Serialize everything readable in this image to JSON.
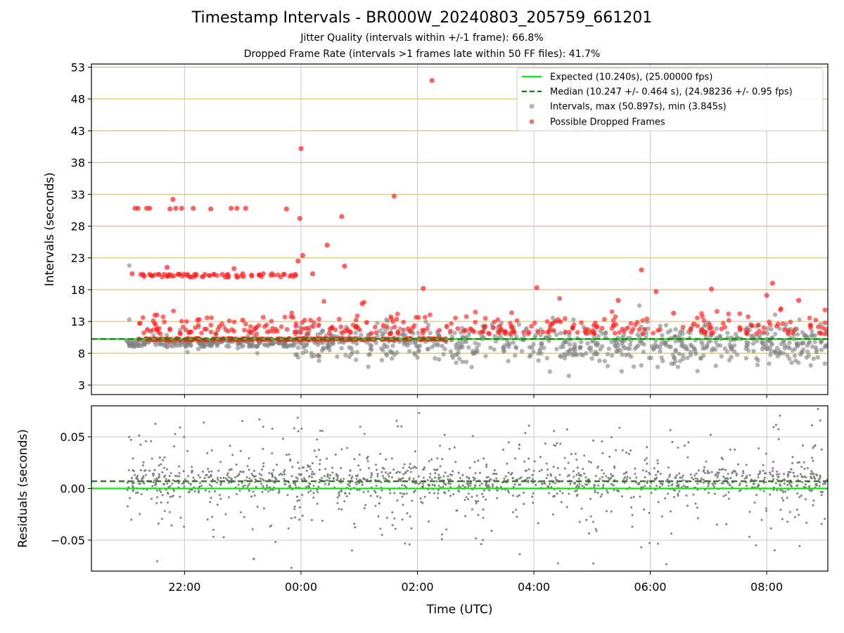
{
  "header": {
    "title": "Timestamp Intervals - BR000W_20240803_205759_661201",
    "subtitle1": "Jitter Quality (intervals within +/-1 frame): 66.8%",
    "subtitle2": "Dropped Frame Rate (intervals >1 frames late within 50 FF files): 41.7%"
  },
  "colors": {
    "expected": "#00ee00",
    "median": "#1a7a1a",
    "intervals": "#808080",
    "dropped": "#ff1f1f",
    "hgrid": "#d4c080",
    "vgrid": "#c8c8c8"
  },
  "chart_data": [
    {
      "type": "scatter",
      "title": "Timestamp Intervals - BR000W_20240803_205759_661201",
      "xlabel": "",
      "ylabel": "Intervals (seconds)",
      "x_ticks": [
        "22:00",
        "00:00",
        "02:00",
        "04:00",
        "06:00",
        "08:00"
      ],
      "x_tick_hours": [
        22,
        24,
        26,
        28,
        30,
        32
      ],
      "xlim_hours": [
        20.4,
        33.05
      ],
      "ylim": [
        1.5,
        53.5
      ],
      "y_ticks": [
        3,
        8,
        13,
        18,
        23,
        28,
        33,
        38,
        43,
        48,
        53
      ],
      "grid": true,
      "legend": {
        "placement": "top-right",
        "entries": [
          "Expected (10.240s), (25.00000 fps)",
          "Median (10.247 +/- 0.464 s), (24.98236 +/- 0.95 fps)",
          "Intervals, max (50.897s), min (3.845s)",
          "Possible Dropped Frames"
        ]
      },
      "expected_interval": 10.24,
      "median_interval": 10.247,
      "series": [
        {
          "name": "Possible Dropped Frames",
          "description_points": [
            [
              21.1,
              20.5
            ],
            [
              21.15,
              30.8
            ],
            [
              21.2,
              30.8
            ],
            [
              21.35,
              30.8
            ],
            [
              21.4,
              30.8
            ],
            [
              21.25,
              20.4
            ],
            [
              21.4,
              20.4
            ],
            [
              21.55,
              20.4
            ],
            [
              21.65,
              20.4
            ],
            [
              21.7,
              21.5
            ],
            [
              21.75,
              30.7
            ],
            [
              21.85,
              30.8
            ],
            [
              21.95,
              30.8
            ],
            [
              21.8,
              32.2
            ],
            [
              21.9,
              20.4
            ],
            [
              22.05,
              20.4
            ],
            [
              22.15,
              30.8
            ],
            [
              22.2,
              20.4
            ],
            [
              22.35,
              20.4
            ],
            [
              22.45,
              30.7
            ],
            [
              22.5,
              20.4
            ],
            [
              22.65,
              20.4
            ],
            [
              22.8,
              30.8
            ],
            [
              22.9,
              30.8
            ],
            [
              23.05,
              30.8
            ],
            [
              22.7,
              20.0
            ],
            [
              22.85,
              21.3
            ],
            [
              23.0,
              20.5
            ],
            [
              23.15,
              20.3
            ],
            [
              23.35,
              20.5
            ],
            [
              23.5,
              20.5
            ],
            [
              23.7,
              20.4
            ],
            [
              23.75,
              30.7
            ],
            [
              23.9,
              20.4
            ],
            [
              23.95,
              22.5
            ],
            [
              23.98,
              29.2
            ],
            [
              24.0,
              40.2
            ],
            [
              24.03,
              23.4
            ],
            [
              24.2,
              20.5
            ],
            [
              24.45,
              25.0
            ],
            [
              24.7,
              29.5
            ],
            [
              24.75,
              21.7
            ],
            [
              25.6,
              32.7
            ],
            [
              25.05,
              15.8
            ],
            [
              26.1,
              18.2
            ],
            [
              26.25,
              50.9
            ],
            [
              28.05,
              18.3
            ],
            [
              29.45,
              16.3
            ],
            [
              29.85,
              21.1
            ],
            [
              30.1,
              17.7
            ],
            [
              30.4,
              14.3
            ],
            [
              30.75,
              12.6
            ],
            [
              31.05,
              18.1
            ],
            [
              32.0,
              17.1
            ],
            [
              32.1,
              19.0
            ],
            [
              32.55,
              16.3
            ],
            [
              22.25,
              13.3
            ],
            [
              22.6,
              12.2
            ],
            [
              23.0,
              13.2
            ]
          ]
        },
        {
          "name": "Intervals, max (50.897s), min (3.845s)",
          "range_note": "dense band around 10.24 with spread 3.845 to 50.897"
        }
      ]
    },
    {
      "type": "scatter",
      "xlabel": "Time (UTC)",
      "ylabel": "Residuals (seconds)",
      "x_ticks": [
        "22:00",
        "00:00",
        "02:00",
        "04:00",
        "06:00",
        "08:00"
      ],
      "xlim_hours": [
        20.4,
        33.05
      ],
      "ylim": [
        -0.08,
        0.08
      ],
      "y_ticks": [
        -0.05,
        0.0,
        0.05
      ],
      "y_tick_labels": [
        "−0.05",
        "0.00",
        "0.05"
      ],
      "grid": true,
      "expected_residual": 0.0,
      "median_residual": 0.007
    }
  ]
}
